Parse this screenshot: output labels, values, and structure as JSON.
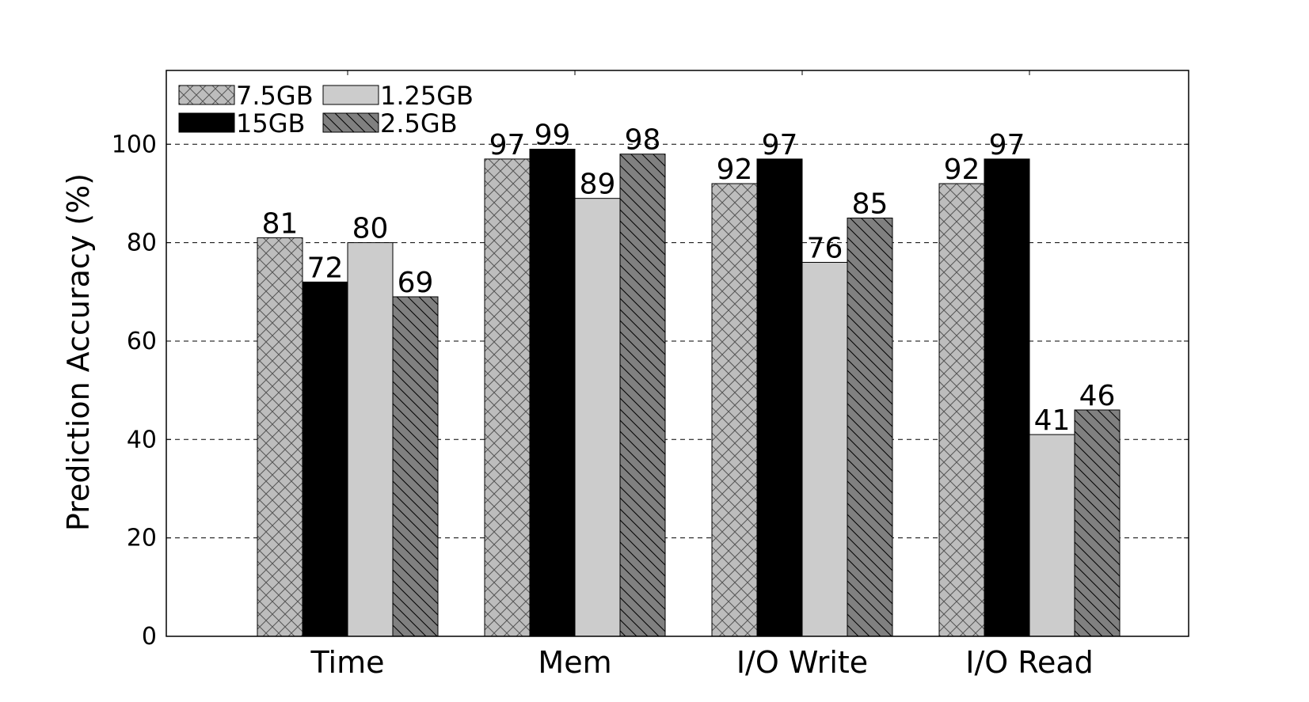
{
  "chart_data": {
    "type": "bar",
    "title": "",
    "xlabel": "",
    "ylabel": "Prediction Accuracy (%)",
    "ylim": [
      0,
      115
    ],
    "yticks": [
      0,
      20,
      40,
      60,
      80,
      100
    ],
    "grid": "horizontal dashed",
    "legend_placement": "top-left",
    "categories": [
      "Time",
      "Mem",
      "I/O Write",
      "I/O Read"
    ],
    "series": [
      {
        "name": "7.5GB",
        "values": [
          81,
          97,
          92,
          92
        ],
        "color": "#bdbdbd",
        "pattern": "crosshatch"
      },
      {
        "name": "15GB",
        "values": [
          72,
          99,
          97,
          97
        ],
        "color": "#000000",
        "pattern": "solid"
      },
      {
        "name": "1.25GB",
        "values": [
          80,
          89,
          76,
          41
        ],
        "color": "#cccccc",
        "pattern": "solid"
      },
      {
        "name": "2.5GB",
        "values": [
          69,
          98,
          85,
          46
        ],
        "color": "#808080",
        "pattern": "backslash-hatch"
      }
    ]
  }
}
